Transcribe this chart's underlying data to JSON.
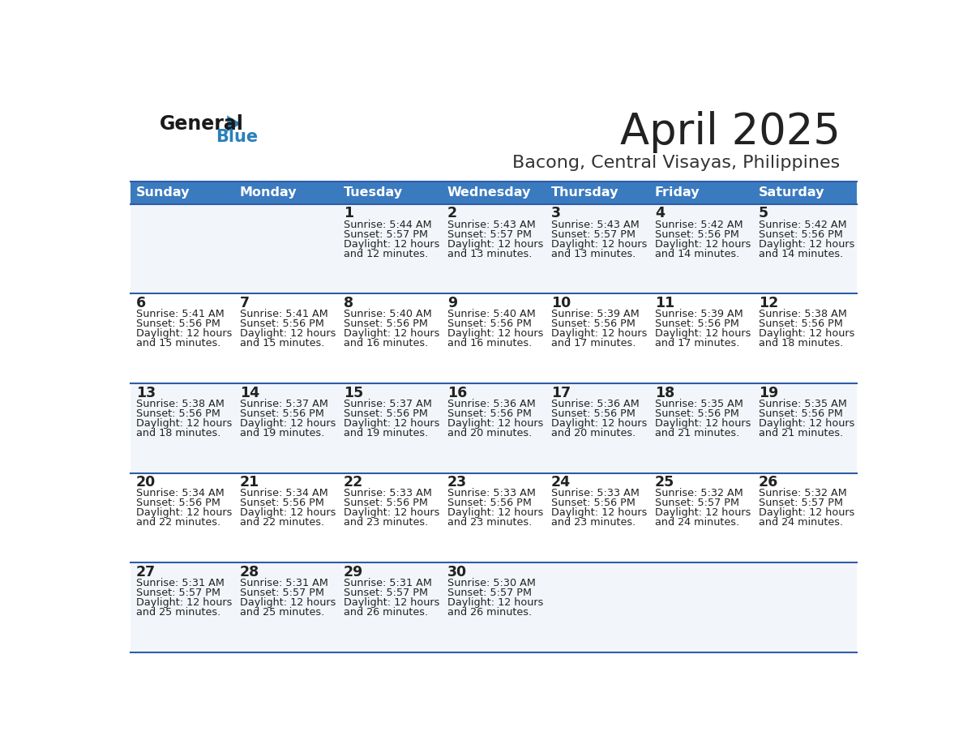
{
  "title": "April 2025",
  "subtitle": "Bacong, Central Visayas, Philippines",
  "header_color": "#3a7abf",
  "header_text_color": "#ffffff",
  "title_color": "#222222",
  "subtitle_color": "#333333",
  "days_of_week": [
    "Sunday",
    "Monday",
    "Tuesday",
    "Wednesday",
    "Thursday",
    "Friday",
    "Saturday"
  ],
  "row_bg_odd": "#f2f6fa",
  "row_bg_even": "#ffffff",
  "divider_color": "#2e5ca8",
  "cell_text_color": "#222222",
  "logo_general_color": "#1a1a1a",
  "logo_blue_color": "#2980b9",
  "calendar_data": [
    [
      {
        "day": "",
        "sunrise": "",
        "sunset": "",
        "daylight_min": ""
      },
      {
        "day": "",
        "sunrise": "",
        "sunset": "",
        "daylight_min": ""
      },
      {
        "day": "1",
        "sunrise": "5:44 AM",
        "sunset": "5:57 PM",
        "daylight_min": "and 12 minutes."
      },
      {
        "day": "2",
        "sunrise": "5:43 AM",
        "sunset": "5:57 PM",
        "daylight_min": "and 13 minutes."
      },
      {
        "day": "3",
        "sunrise": "5:43 AM",
        "sunset": "5:57 PM",
        "daylight_min": "and 13 minutes."
      },
      {
        "day": "4",
        "sunrise": "5:42 AM",
        "sunset": "5:56 PM",
        "daylight_min": "and 14 minutes."
      },
      {
        "day": "5",
        "sunrise": "5:42 AM",
        "sunset": "5:56 PM",
        "daylight_min": "and 14 minutes."
      }
    ],
    [
      {
        "day": "6",
        "sunrise": "5:41 AM",
        "sunset": "5:56 PM",
        "daylight_min": "and 15 minutes."
      },
      {
        "day": "7",
        "sunrise": "5:41 AM",
        "sunset": "5:56 PM",
        "daylight_min": "and 15 minutes."
      },
      {
        "day": "8",
        "sunrise": "5:40 AM",
        "sunset": "5:56 PM",
        "daylight_min": "and 16 minutes."
      },
      {
        "day": "9",
        "sunrise": "5:40 AM",
        "sunset": "5:56 PM",
        "daylight_min": "and 16 minutes."
      },
      {
        "day": "10",
        "sunrise": "5:39 AM",
        "sunset": "5:56 PM",
        "daylight_min": "and 17 minutes."
      },
      {
        "day": "11",
        "sunrise": "5:39 AM",
        "sunset": "5:56 PM",
        "daylight_min": "and 17 minutes."
      },
      {
        "day": "12",
        "sunrise": "5:38 AM",
        "sunset": "5:56 PM",
        "daylight_min": "and 18 minutes."
      }
    ],
    [
      {
        "day": "13",
        "sunrise": "5:38 AM",
        "sunset": "5:56 PM",
        "daylight_min": "and 18 minutes."
      },
      {
        "day": "14",
        "sunrise": "5:37 AM",
        "sunset": "5:56 PM",
        "daylight_min": "and 19 minutes."
      },
      {
        "day": "15",
        "sunrise": "5:37 AM",
        "sunset": "5:56 PM",
        "daylight_min": "and 19 minutes."
      },
      {
        "day": "16",
        "sunrise": "5:36 AM",
        "sunset": "5:56 PM",
        "daylight_min": "and 20 minutes."
      },
      {
        "day": "17",
        "sunrise": "5:36 AM",
        "sunset": "5:56 PM",
        "daylight_min": "and 20 minutes."
      },
      {
        "day": "18",
        "sunrise": "5:35 AM",
        "sunset": "5:56 PM",
        "daylight_min": "and 21 minutes."
      },
      {
        "day": "19",
        "sunrise": "5:35 AM",
        "sunset": "5:56 PM",
        "daylight_min": "and 21 minutes."
      }
    ],
    [
      {
        "day": "20",
        "sunrise": "5:34 AM",
        "sunset": "5:56 PM",
        "daylight_min": "and 22 minutes."
      },
      {
        "day": "21",
        "sunrise": "5:34 AM",
        "sunset": "5:56 PM",
        "daylight_min": "and 22 minutes."
      },
      {
        "day": "22",
        "sunrise": "5:33 AM",
        "sunset": "5:56 PM",
        "daylight_min": "and 23 minutes."
      },
      {
        "day": "23",
        "sunrise": "5:33 AM",
        "sunset": "5:56 PM",
        "daylight_min": "and 23 minutes."
      },
      {
        "day": "24",
        "sunrise": "5:33 AM",
        "sunset": "5:56 PM",
        "daylight_min": "and 23 minutes."
      },
      {
        "day": "25",
        "sunrise": "5:32 AM",
        "sunset": "5:57 PM",
        "daylight_min": "and 24 minutes."
      },
      {
        "day": "26",
        "sunrise": "5:32 AM",
        "sunset": "5:57 PM",
        "daylight_min": "and 24 minutes."
      }
    ],
    [
      {
        "day": "27",
        "sunrise": "5:31 AM",
        "sunset": "5:57 PM",
        "daylight_min": "and 25 minutes."
      },
      {
        "day": "28",
        "sunrise": "5:31 AM",
        "sunset": "5:57 PM",
        "daylight_min": "and 25 minutes."
      },
      {
        "day": "29",
        "sunrise": "5:31 AM",
        "sunset": "5:57 PM",
        "daylight_min": "and 26 minutes."
      },
      {
        "day": "30",
        "sunrise": "5:30 AM",
        "sunset": "5:57 PM",
        "daylight_min": "and 26 minutes."
      },
      {
        "day": "",
        "sunrise": "",
        "sunset": "",
        "daylight_min": ""
      },
      {
        "day": "",
        "sunrise": "",
        "sunset": "",
        "daylight_min": ""
      },
      {
        "day": "",
        "sunrise": "",
        "sunset": "",
        "daylight_min": ""
      }
    ]
  ]
}
